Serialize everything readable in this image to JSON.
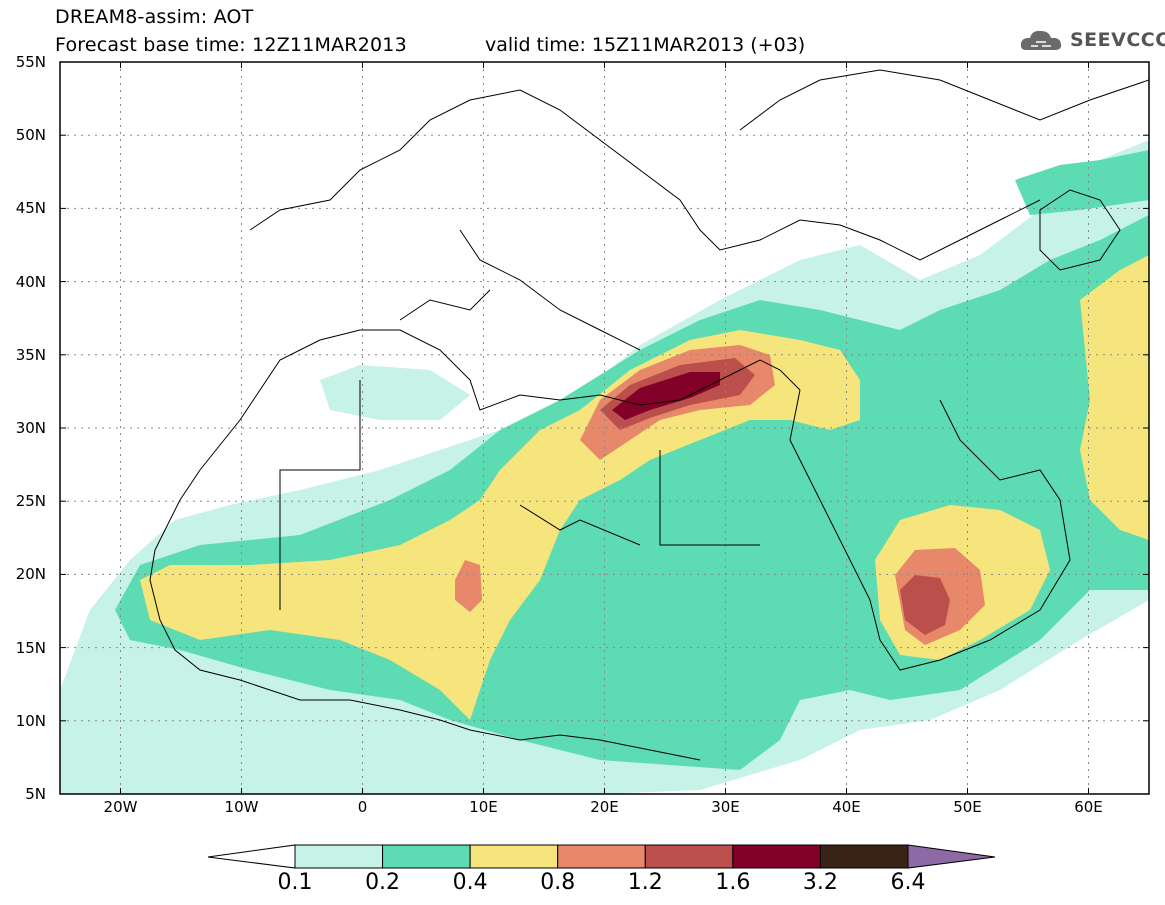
{
  "header": {
    "title": "DREAM8-assim: AOT",
    "base_time": "Forecast base time: 12Z11MAR2013",
    "valid_time": "valid time: 15Z11MAR2013 (+03)"
  },
  "logo": {
    "text": "SEEVCCC",
    "icon": "cloud-logo-icon"
  },
  "map": {
    "lat_labels": [
      "55N",
      "50N",
      "45N",
      "40N",
      "35N",
      "30N",
      "25N",
      "20N",
      "15N",
      "10N",
      "5N"
    ],
    "lat_values": [
      55,
      50,
      45,
      40,
      35,
      30,
      25,
      20,
      15,
      10,
      5
    ],
    "lon_labels": [
      "20W",
      "10W",
      "0",
      "10E",
      "20E",
      "30E",
      "40E",
      "50E",
      "60E"
    ],
    "lon_values": [
      -20,
      -10,
      0,
      10,
      20,
      30,
      40,
      50,
      60
    ],
    "extent": {
      "lon_min": -25,
      "lon_max": 65,
      "lat_min": 5,
      "lat_max": 55
    }
  },
  "colorbar": {
    "thresholds": [
      "0.1",
      "0.2",
      "0.4",
      "0.8",
      "1.2",
      "1.6",
      "3.2",
      "6.4"
    ],
    "colors": [
      "#c6f2e8",
      "#5ddbb3",
      "#f5e57c",
      "#e8886a",
      "#bb4f4c",
      "#830028",
      "#3a2418"
    ],
    "under_color": "#ffffff",
    "over_color": "#8d6aa5"
  }
}
